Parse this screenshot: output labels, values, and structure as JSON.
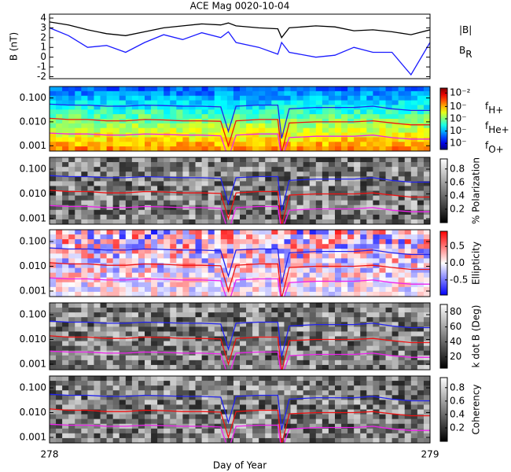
{
  "chart_data": [
    {
      "type": "line",
      "title": "ACE Mag 0020-10-04",
      "ylabel": "B (nT)",
      "x": [
        278.0,
        278.05,
        278.1,
        278.15,
        278.2,
        278.25,
        278.3,
        278.35,
        278.4,
        278.45,
        278.47,
        278.49,
        278.55,
        278.6,
        278.61,
        278.63,
        278.7,
        278.75,
        278.8,
        278.85,
        278.9,
        278.95,
        279.0
      ],
      "xlim": [
        278,
        279
      ],
      "ylim": [
        -2.2,
        4.4
      ],
      "yticks": [
        -2,
        -1,
        0,
        1,
        2,
        3,
        4
      ],
      "series": [
        {
          "name": "|B|",
          "color": "#000000",
          "values": [
            3.6,
            3.3,
            2.8,
            2.4,
            2.2,
            2.6,
            3.0,
            3.2,
            3.4,
            3.3,
            3.5,
            3.2,
            3.0,
            2.9,
            2.0,
            3.0,
            3.2,
            3.1,
            2.7,
            2.8,
            2.6,
            2.3,
            2.8
          ]
        },
        {
          "name": "B",
          "sub": "R",
          "color": "#1a1aff",
          "values": [
            3.0,
            2.2,
            1.0,
            1.2,
            0.5,
            1.5,
            2.3,
            1.8,
            2.5,
            2.0,
            2.6,
            1.5,
            1.0,
            0.3,
            1.5,
            0.5,
            0.0,
            0.2,
            1.0,
            0.5,
            0.5,
            -1.8,
            1.5
          ]
        }
      ]
    },
    {
      "type": "spectrogram",
      "colormap": "jet",
      "log_scale": true,
      "legend": true,
      "x": [
        278.0,
        278.05,
        278.1,
        278.15,
        278.2,
        278.25,
        278.3,
        278.35,
        278.4,
        278.45,
        278.47,
        278.49,
        278.55,
        278.6,
        278.61,
        278.63,
        278.7,
        278.75,
        278.8,
        278.85,
        278.9,
        278.95,
        279.0
      ],
      "xlim": [
        278,
        279
      ],
      "ylim": [
        0.0006,
        0.3
      ],
      "yticks": [
        0.001,
        {
          "value": 0.01,
          "label": "0.010"
        },
        {
          "value": 0.1,
          "label": "0.100"
        }
      ],
      "cbar_lim": [
        0,
        5
      ],
      "cbar_ticks": [
        {
          "value": 0.5,
          "label": "10⁻"
        },
        {
          "value": 1.5,
          "label": "10⁻"
        },
        {
          "value": 2.5,
          "label": "10⁻"
        },
        {
          "value": 3.5,
          "label": "10⁻"
        },
        {
          "value": 4.6,
          "label": "10⁻²"
        }
      ],
      "series": [
        {
          "name": "f",
          "sub": "H+",
          "color": "#2222ee",
          "values": [
            0.055,
            0.05,
            0.05,
            0.045,
            0.045,
            0.05,
            0.048,
            0.045,
            0.045,
            0.042,
            0.004,
            0.045,
            0.05,
            0.05,
            0.002,
            0.035,
            0.04,
            0.04,
            0.04,
            0.045,
            0.035,
            0.03,
            0.03
          ]
        },
        {
          "name": "f",
          "sub": "He+",
          "color": "#ee1111",
          "values": [
            0.014,
            0.0125,
            0.0125,
            0.011,
            0.011,
            0.0125,
            0.012,
            0.011,
            0.011,
            0.0105,
            0.001,
            0.011,
            0.0125,
            0.0125,
            0.0005,
            0.009,
            0.01,
            0.01,
            0.01,
            0.011,
            0.009,
            0.0075,
            0.0075
          ]
        },
        {
          "name": "f",
          "sub": "O+",
          "color": "#ee22ee",
          "values": [
            0.0034,
            0.0031,
            0.0031,
            0.0028,
            0.0028,
            0.0031,
            0.003,
            0.0028,
            0.0028,
            0.0026,
            0.0003,
            0.0028,
            0.0031,
            0.0031,
            0.0003,
            0.0022,
            0.0025,
            0.0025,
            0.0025,
            0.0028,
            0.0022,
            0.0019,
            0.0019
          ]
        }
      ]
    },
    {
      "type": "spectrogram",
      "colormap": "gray",
      "log_scale": true,
      "colorbar_label": "% Polarization",
      "x": [
        278.0,
        278.05,
        278.1,
        278.15,
        278.2,
        278.25,
        278.3,
        278.35,
        278.4,
        278.45,
        278.47,
        278.49,
        278.55,
        278.6,
        278.61,
        278.63,
        278.7,
        278.75,
        278.8,
        278.85,
        278.9,
        278.95,
        279.0
      ],
      "xlim": [
        278,
        279
      ],
      "ylim": [
        0.0006,
        0.3
      ],
      "yticks": [
        0.001,
        {
          "value": 0.01,
          "label": "0.010"
        },
        {
          "value": 0.1,
          "label": "0.100"
        }
      ],
      "cbar_lim": [
        0,
        0.95
      ],
      "cbar_ticks": [
        0.2,
        0.4,
        0.6,
        0.8
      ],
      "series": [
        {
          "color": "#2222ee",
          "values": [
            0.055,
            0.05,
            0.05,
            0.045,
            0.045,
            0.05,
            0.048,
            0.045,
            0.045,
            0.042,
            0.004,
            0.045,
            0.05,
            0.05,
            0.002,
            0.035,
            0.04,
            0.04,
            0.04,
            0.045,
            0.035,
            0.03,
            0.03
          ]
        },
        {
          "color": "#ee1111",
          "values": [
            0.014,
            0.0125,
            0.0125,
            0.011,
            0.011,
            0.0125,
            0.012,
            0.011,
            0.011,
            0.0105,
            0.001,
            0.011,
            0.0125,
            0.0125,
            0.0005,
            0.009,
            0.01,
            0.01,
            0.01,
            0.011,
            0.009,
            0.0075,
            0.0075
          ]
        },
        {
          "color": "#ee22ee",
          "values": [
            0.0034,
            0.0031,
            0.0031,
            0.0028,
            0.0028,
            0.0031,
            0.003,
            0.0028,
            0.0028,
            0.0026,
            0.0003,
            0.0028,
            0.0031,
            0.0031,
            0.0003,
            0.0022,
            0.0025,
            0.0025,
            0.0025,
            0.0028,
            0.0022,
            0.0019,
            0.0019
          ]
        }
      ]
    },
    {
      "type": "spectrogram",
      "colormap": "bwr",
      "log_scale": true,
      "colorbar_label": "Ellipticity",
      "x": [
        278.0,
        278.05,
        278.1,
        278.15,
        278.2,
        278.25,
        278.3,
        278.35,
        278.4,
        278.45,
        278.47,
        278.49,
        278.55,
        278.6,
        278.61,
        278.63,
        278.7,
        278.75,
        278.8,
        278.85,
        278.9,
        278.95,
        279.0
      ],
      "xlim": [
        278,
        279
      ],
      "ylim": [
        0.0006,
        0.3
      ],
      "yticks": [
        0.001,
        {
          "value": 0.01,
          "label": "0.010"
        },
        {
          "value": 0.1,
          "label": "0.100"
        }
      ],
      "cbar_lim": [
        -0.95,
        0.95
      ],
      "cbar_ticks": [
        -0.5,
        {
          "value": 0,
          "label": "0.0"
        },
        0.5
      ],
      "series": [
        {
          "color": "#2222ee",
          "values": [
            0.055,
            0.05,
            0.05,
            0.045,
            0.045,
            0.05,
            0.048,
            0.045,
            0.045,
            0.042,
            0.004,
            0.045,
            0.05,
            0.05,
            0.002,
            0.035,
            0.04,
            0.04,
            0.04,
            0.045,
            0.035,
            0.03,
            0.03
          ]
        },
        {
          "color": "#ee1111",
          "values": [
            0.014,
            0.0125,
            0.0125,
            0.011,
            0.011,
            0.0125,
            0.012,
            0.011,
            0.011,
            0.0105,
            0.001,
            0.011,
            0.0125,
            0.0125,
            0.0005,
            0.009,
            0.01,
            0.01,
            0.01,
            0.011,
            0.009,
            0.0075,
            0.0075
          ]
        },
        {
          "color": "#ee22ee",
          "values": [
            0.0034,
            0.0031,
            0.0031,
            0.0028,
            0.0028,
            0.0031,
            0.003,
            0.0028,
            0.0028,
            0.0026,
            0.0003,
            0.0028,
            0.0031,
            0.0031,
            0.0003,
            0.0022,
            0.0025,
            0.0025,
            0.0025,
            0.0028,
            0.0022,
            0.0019,
            0.0019
          ]
        }
      ]
    },
    {
      "type": "spectrogram",
      "colormap": "gray",
      "log_scale": true,
      "colorbar_label": "k dot B (Deg)",
      "x": [
        278.0,
        278.05,
        278.1,
        278.15,
        278.2,
        278.25,
        278.3,
        278.35,
        278.4,
        278.45,
        278.47,
        278.49,
        278.55,
        278.6,
        278.61,
        278.63,
        278.7,
        278.75,
        278.8,
        278.85,
        278.9,
        278.95,
        279.0
      ],
      "xlim": [
        278,
        279
      ],
      "ylim": [
        0.0006,
        0.3
      ],
      "yticks": [
        0.001,
        {
          "value": 0.01,
          "label": "0.010"
        },
        {
          "value": 0.1,
          "label": "0.100"
        }
      ],
      "cbar_lim": [
        5,
        90
      ],
      "cbar_ticks": [
        20,
        40,
        60,
        80
      ],
      "series": [
        {
          "color": "#2222ee",
          "values": [
            0.055,
            0.05,
            0.05,
            0.045,
            0.045,
            0.05,
            0.048,
            0.045,
            0.045,
            0.042,
            0.004,
            0.045,
            0.05,
            0.05,
            0.002,
            0.035,
            0.04,
            0.04,
            0.04,
            0.045,
            0.035,
            0.03,
            0.03
          ]
        },
        {
          "color": "#ee1111",
          "values": [
            0.014,
            0.0125,
            0.0125,
            0.011,
            0.011,
            0.0125,
            0.012,
            0.011,
            0.011,
            0.0105,
            0.001,
            0.011,
            0.0125,
            0.0125,
            0.0005,
            0.009,
            0.01,
            0.01,
            0.01,
            0.011,
            0.009,
            0.0075,
            0.0075
          ]
        },
        {
          "color": "#ee22ee",
          "values": [
            0.0034,
            0.0031,
            0.0031,
            0.0028,
            0.0028,
            0.0031,
            0.003,
            0.0028,
            0.0028,
            0.0026,
            0.0003,
            0.0028,
            0.0031,
            0.0031,
            0.0003,
            0.0022,
            0.0025,
            0.0025,
            0.0025,
            0.0028,
            0.0022,
            0.0019,
            0.0019
          ]
        }
      ]
    },
    {
      "type": "spectrogram",
      "colormap": "gray",
      "log_scale": true,
      "colorbar_label": "Coherency",
      "x": [
        278.0,
        278.05,
        278.1,
        278.15,
        278.2,
        278.25,
        278.3,
        278.35,
        278.4,
        278.45,
        278.47,
        278.49,
        278.55,
        278.6,
        278.61,
        278.63,
        278.7,
        278.75,
        278.8,
        278.85,
        278.9,
        278.95,
        279.0
      ],
      "xlim": [
        278,
        279
      ],
      "ylim": [
        0.0006,
        0.3
      ],
      "yticks": [
        0.001,
        {
          "value": 0.01,
          "label": "0.010"
        },
        {
          "value": 0.1,
          "label": "0.100"
        }
      ],
      "xticks": [
        278,
        279
      ],
      "xlabel": "Day of Year",
      "cbar_lim": [
        0,
        0.95
      ],
      "cbar_ticks": [
        0.2,
        0.4,
        0.6,
        0.8
      ],
      "series": [
        {
          "color": "#2222ee",
          "values": [
            0.055,
            0.05,
            0.05,
            0.045,
            0.045,
            0.05,
            0.048,
            0.045,
            0.045,
            0.042,
            0.004,
            0.045,
            0.05,
            0.05,
            0.002,
            0.035,
            0.04,
            0.04,
            0.04,
            0.045,
            0.035,
            0.03,
            0.03
          ]
        },
        {
          "color": "#ee1111",
          "values": [
            0.014,
            0.0125,
            0.0125,
            0.011,
            0.011,
            0.0125,
            0.012,
            0.011,
            0.011,
            0.0105,
            0.001,
            0.011,
            0.0125,
            0.0125,
            0.0005,
            0.009,
            0.01,
            0.01,
            0.01,
            0.011,
            0.009,
            0.0075,
            0.0075
          ]
        },
        {
          "color": "#ee22ee",
          "values": [
            0.0034,
            0.0031,
            0.0031,
            0.0028,
            0.0028,
            0.0031,
            0.003,
            0.0028,
            0.0028,
            0.0026,
            0.0003,
            0.0028,
            0.0031,
            0.0031,
            0.0003,
            0.0022,
            0.0025,
            0.0025,
            0.0025,
            0.0028,
            0.0022,
            0.0019,
            0.0019
          ]
        }
      ]
    }
  ]
}
